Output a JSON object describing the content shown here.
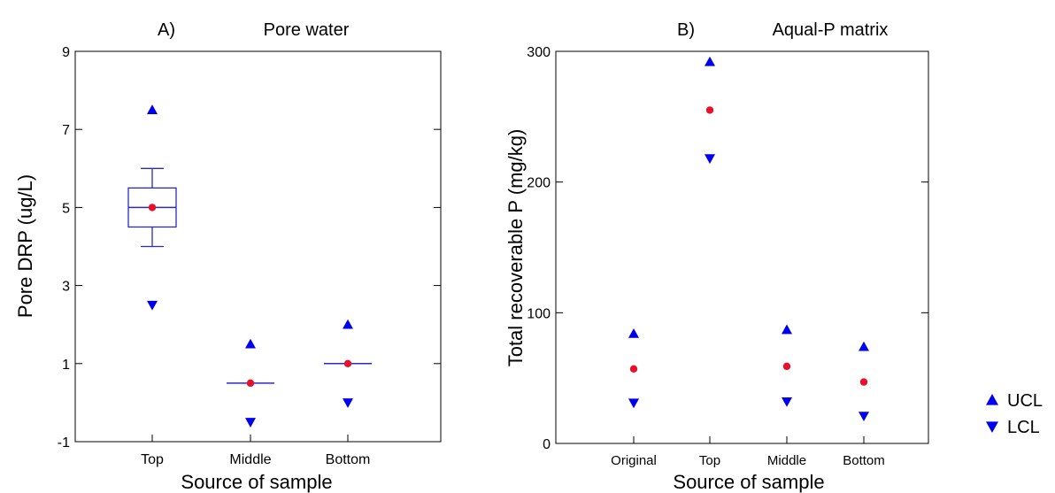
{
  "colors": {
    "marker": "#0000ee",
    "mean": "#e8102a",
    "box": "#2a2acc"
  },
  "legend": {
    "placement": "right",
    "entries": [
      {
        "label": "UCL",
        "marker": "triangle-up"
      },
      {
        "label": "LCL",
        "marker": "triangle-down"
      }
    ]
  },
  "chart_data": [
    {
      "type": "box",
      "panel": "A)",
      "title": "Pore water",
      "xlabel": "Source of sample",
      "ylabel": "Pore DRP (ug/L)",
      "categories": [
        "Top",
        "Middle",
        "Bottom"
      ],
      "ylim": [
        -1,
        9
      ],
      "yticks": [
        "-1",
        "1",
        "3",
        "5",
        "7",
        "9"
      ],
      "boxes": [
        {
          "category": "Top",
          "q1": 4.5,
          "median": 5,
          "q3": 5.5,
          "whisker_low": 4,
          "whisker_high": 6
        },
        {
          "category": "Middle",
          "q1": 0.5,
          "median": 0.5,
          "q3": 0.5,
          "whisker_low": 0.5,
          "whisker_high": 0.5
        },
        {
          "category": "Bottom",
          "q1": 1,
          "median": 1,
          "q3": 1,
          "whisker_low": 1,
          "whisker_high": 1
        }
      ],
      "series": [
        {
          "name": "UCL",
          "values": [
            7.5,
            1.5,
            2.0
          ]
        },
        {
          "name": "LCL",
          "values": [
            2.5,
            -0.5,
            0.0
          ]
        },
        {
          "values": [
            5.0,
            0.5,
            1.0
          ]
        }
      ],
      "grid": false
    },
    {
      "type": "scatter",
      "panel": "B)",
      "title": "Aqual-P matrix",
      "xlabel": "Source of sample",
      "ylabel": "Total recoverable P (mg/kg)",
      "categories": [
        "Original",
        "Top",
        "Middle",
        "Bottom"
      ],
      "ylim": [
        0,
        300
      ],
      "yticks": [
        "0",
        "100",
        "200",
        "300"
      ],
      "series": [
        {
          "name": "UCL",
          "values": [
            84,
            292,
            87,
            74
          ]
        },
        {
          "name": "LCL",
          "values": [
            31,
            218,
            32,
            21
          ]
        },
        {
          "values": [
            57,
            255,
            59,
            47
          ]
        }
      ],
      "grid": false
    }
  ]
}
